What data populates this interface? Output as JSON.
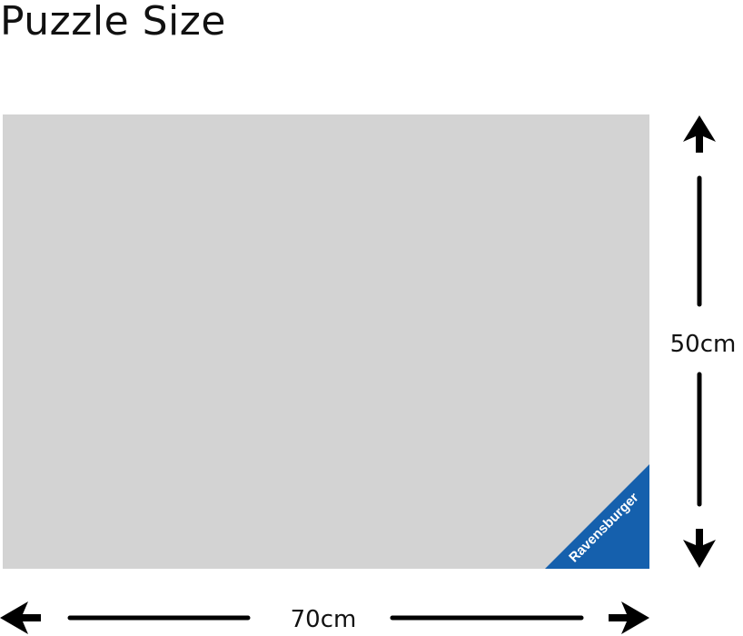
{
  "title": "Puzzle Size",
  "puzzle": {
    "fill_color": "#d3d3d3",
    "brand": "Ravensburger",
    "brand_color": "#1560ad"
  },
  "dimensions": {
    "width_label": "70cm",
    "height_label": "50cm"
  }
}
